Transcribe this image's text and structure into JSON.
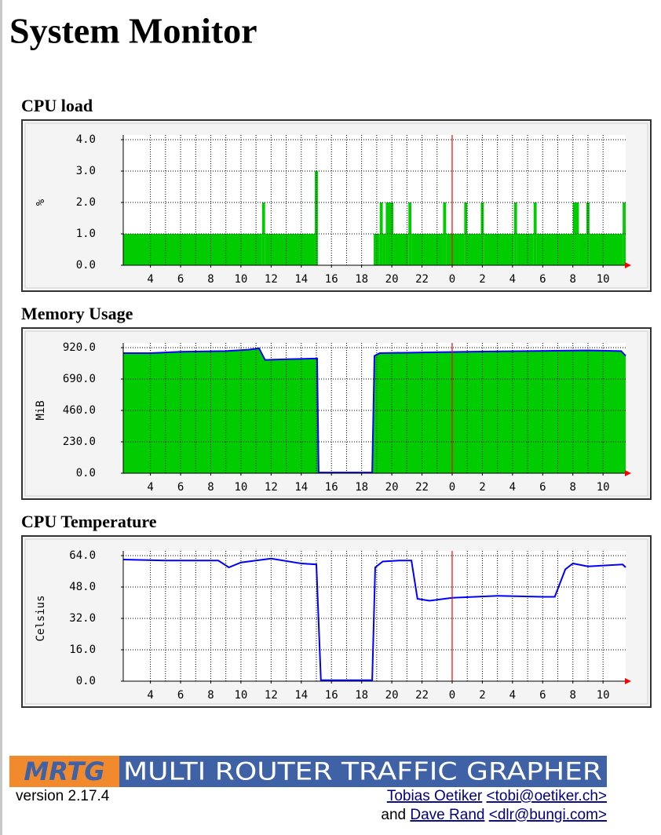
{
  "page": {
    "title": "System Monitor",
    "logo": {
      "mark": "MRTG",
      "text": "MULTI ROUTER TRAFFIC GRAPHER"
    },
    "version": "version 2.17.4",
    "authors": [
      {
        "name": "Tobias Oetiker",
        "email": "<tobi@oetiker.ch>"
      },
      {
        "prefix": "and",
        "name": "Dave Rand",
        "email": "<dlr@bungi.com>"
      }
    ]
  },
  "chart_data": [
    {
      "type": "area",
      "step": true,
      "title": "CPU load",
      "ylabel": "%",
      "color": "#00cc00",
      "x": [
        2.2,
        11.4,
        11.6,
        14.9,
        15.1,
        18.8,
        19.2,
        19.4,
        19.6,
        20.1,
        21.1,
        21.3,
        23.4,
        23.6,
        24.8,
        25.0,
        25.9,
        26.1,
        28.1,
        28.3,
        29.4,
        29.6,
        32.0,
        32.4,
        32.9,
        33.1,
        35.3
      ],
      "values": [
        1,
        2,
        1,
        3,
        0,
        1,
        2,
        1,
        2,
        1,
        2,
        1,
        2,
        1,
        2,
        1,
        2,
        1,
        2,
        1,
        2,
        1,
        2,
        1,
        2,
        1,
        2
      ],
      "xlim": [
        2.2,
        35.5
      ],
      "ylim": [
        0,
        4
      ],
      "xticks": [
        4,
        6,
        8,
        10,
        12,
        14,
        16,
        18,
        20,
        22,
        {
          "value": 24,
          "label": "0"
        },
        {
          "value": 26,
          "label": "2"
        },
        {
          "value": 28,
          "label": "4"
        },
        {
          "value": 30,
          "label": "6"
        },
        {
          "value": 32,
          "label": "8"
        },
        {
          "value": 34,
          "label": "10"
        }
      ],
      "yticks": [
        {
          "value": 0,
          "label": "0.0"
        },
        {
          "value": 1,
          "label": "1.0"
        },
        {
          "value": 2,
          "label": "2.0"
        },
        {
          "value": 3,
          "label": "3.0"
        },
        {
          "value": 4,
          "label": "4.0"
        }
      ],
      "vline": 24,
      "vline_color": "#ff0000",
      "grid": true
    },
    {
      "type": "area",
      "step": false,
      "title": "Memory Usage",
      "ylabel": "MiB",
      "color": "#00cc00",
      "line_color": "#0000ff",
      "x": [
        2.2,
        4,
        6,
        9,
        10.5,
        11.2,
        11.6,
        13,
        14.9,
        15.05,
        15.15,
        16,
        18.7,
        18.85,
        19.2,
        22,
        25,
        29,
        33,
        35.2,
        35.5
      ],
      "values": [
        880,
        880,
        890,
        895,
        905,
        915,
        830,
        835,
        840,
        840,
        5,
        5,
        5,
        860,
        880,
        885,
        890,
        895,
        900,
        895,
        860
      ],
      "xlim": [
        2.2,
        35.5
      ],
      "ylim": [
        0,
        920
      ],
      "xticks": [
        4,
        6,
        8,
        10,
        12,
        14,
        16,
        18,
        20,
        22,
        {
          "value": 24,
          "label": "0"
        },
        {
          "value": 26,
          "label": "2"
        },
        {
          "value": 28,
          "label": "4"
        },
        {
          "value": 30,
          "label": "6"
        },
        {
          "value": 32,
          "label": "8"
        },
        {
          "value": 34,
          "label": "10"
        }
      ],
      "yticks": [
        {
          "value": 0,
          "label": "0.0"
        },
        {
          "value": 230,
          "label": "230.0"
        },
        {
          "value": 460,
          "label": "460.0"
        },
        {
          "value": 690,
          "label": "690.0"
        },
        {
          "value": 920,
          "label": "920.0"
        }
      ],
      "vline": 24,
      "vline_color": "#ff0000",
      "grid": true
    },
    {
      "type": "line",
      "title": "CPU Temperature",
      "ylabel": "Celsius",
      "line_color": "#0000ff",
      "x": [
        2.2,
        5,
        8.5,
        9.2,
        10,
        12,
        14,
        15.0,
        15.15,
        15.3,
        18.7,
        18.9,
        19.4,
        20.5,
        21.3,
        21.7,
        22.5,
        24,
        27,
        30,
        30.8,
        31.5,
        32,
        33,
        35.3,
        35.5
      ],
      "values": [
        62,
        61.5,
        61.5,
        58,
        60.5,
        62.5,
        60,
        59.5,
        30,
        0.5,
        0.5,
        58,
        61,
        61.5,
        61.5,
        42,
        41,
        42.5,
        43.5,
        43,
        43,
        57,
        60,
        58.5,
        59.5,
        58
      ],
      "xlim": [
        2.2,
        35.5
      ],
      "ylim": [
        0,
        64
      ],
      "xticks": [
        4,
        6,
        8,
        10,
        12,
        14,
        16,
        18,
        20,
        22,
        {
          "value": 24,
          "label": "0"
        },
        {
          "value": 26,
          "label": "2"
        },
        {
          "value": 28,
          "label": "4"
        },
        {
          "value": 30,
          "label": "6"
        },
        {
          "value": 32,
          "label": "8"
        },
        {
          "value": 34,
          "label": "10"
        }
      ],
      "yticks": [
        {
          "value": 0,
          "label": "0.0"
        },
        {
          "value": 16,
          "label": "16.0"
        },
        {
          "value": 32,
          "label": "32.0"
        },
        {
          "value": 48,
          "label": "48.0"
        },
        {
          "value": 64,
          "label": "64.0"
        }
      ],
      "vline": 24,
      "vline_color": "#ff0000",
      "grid": true
    }
  ]
}
